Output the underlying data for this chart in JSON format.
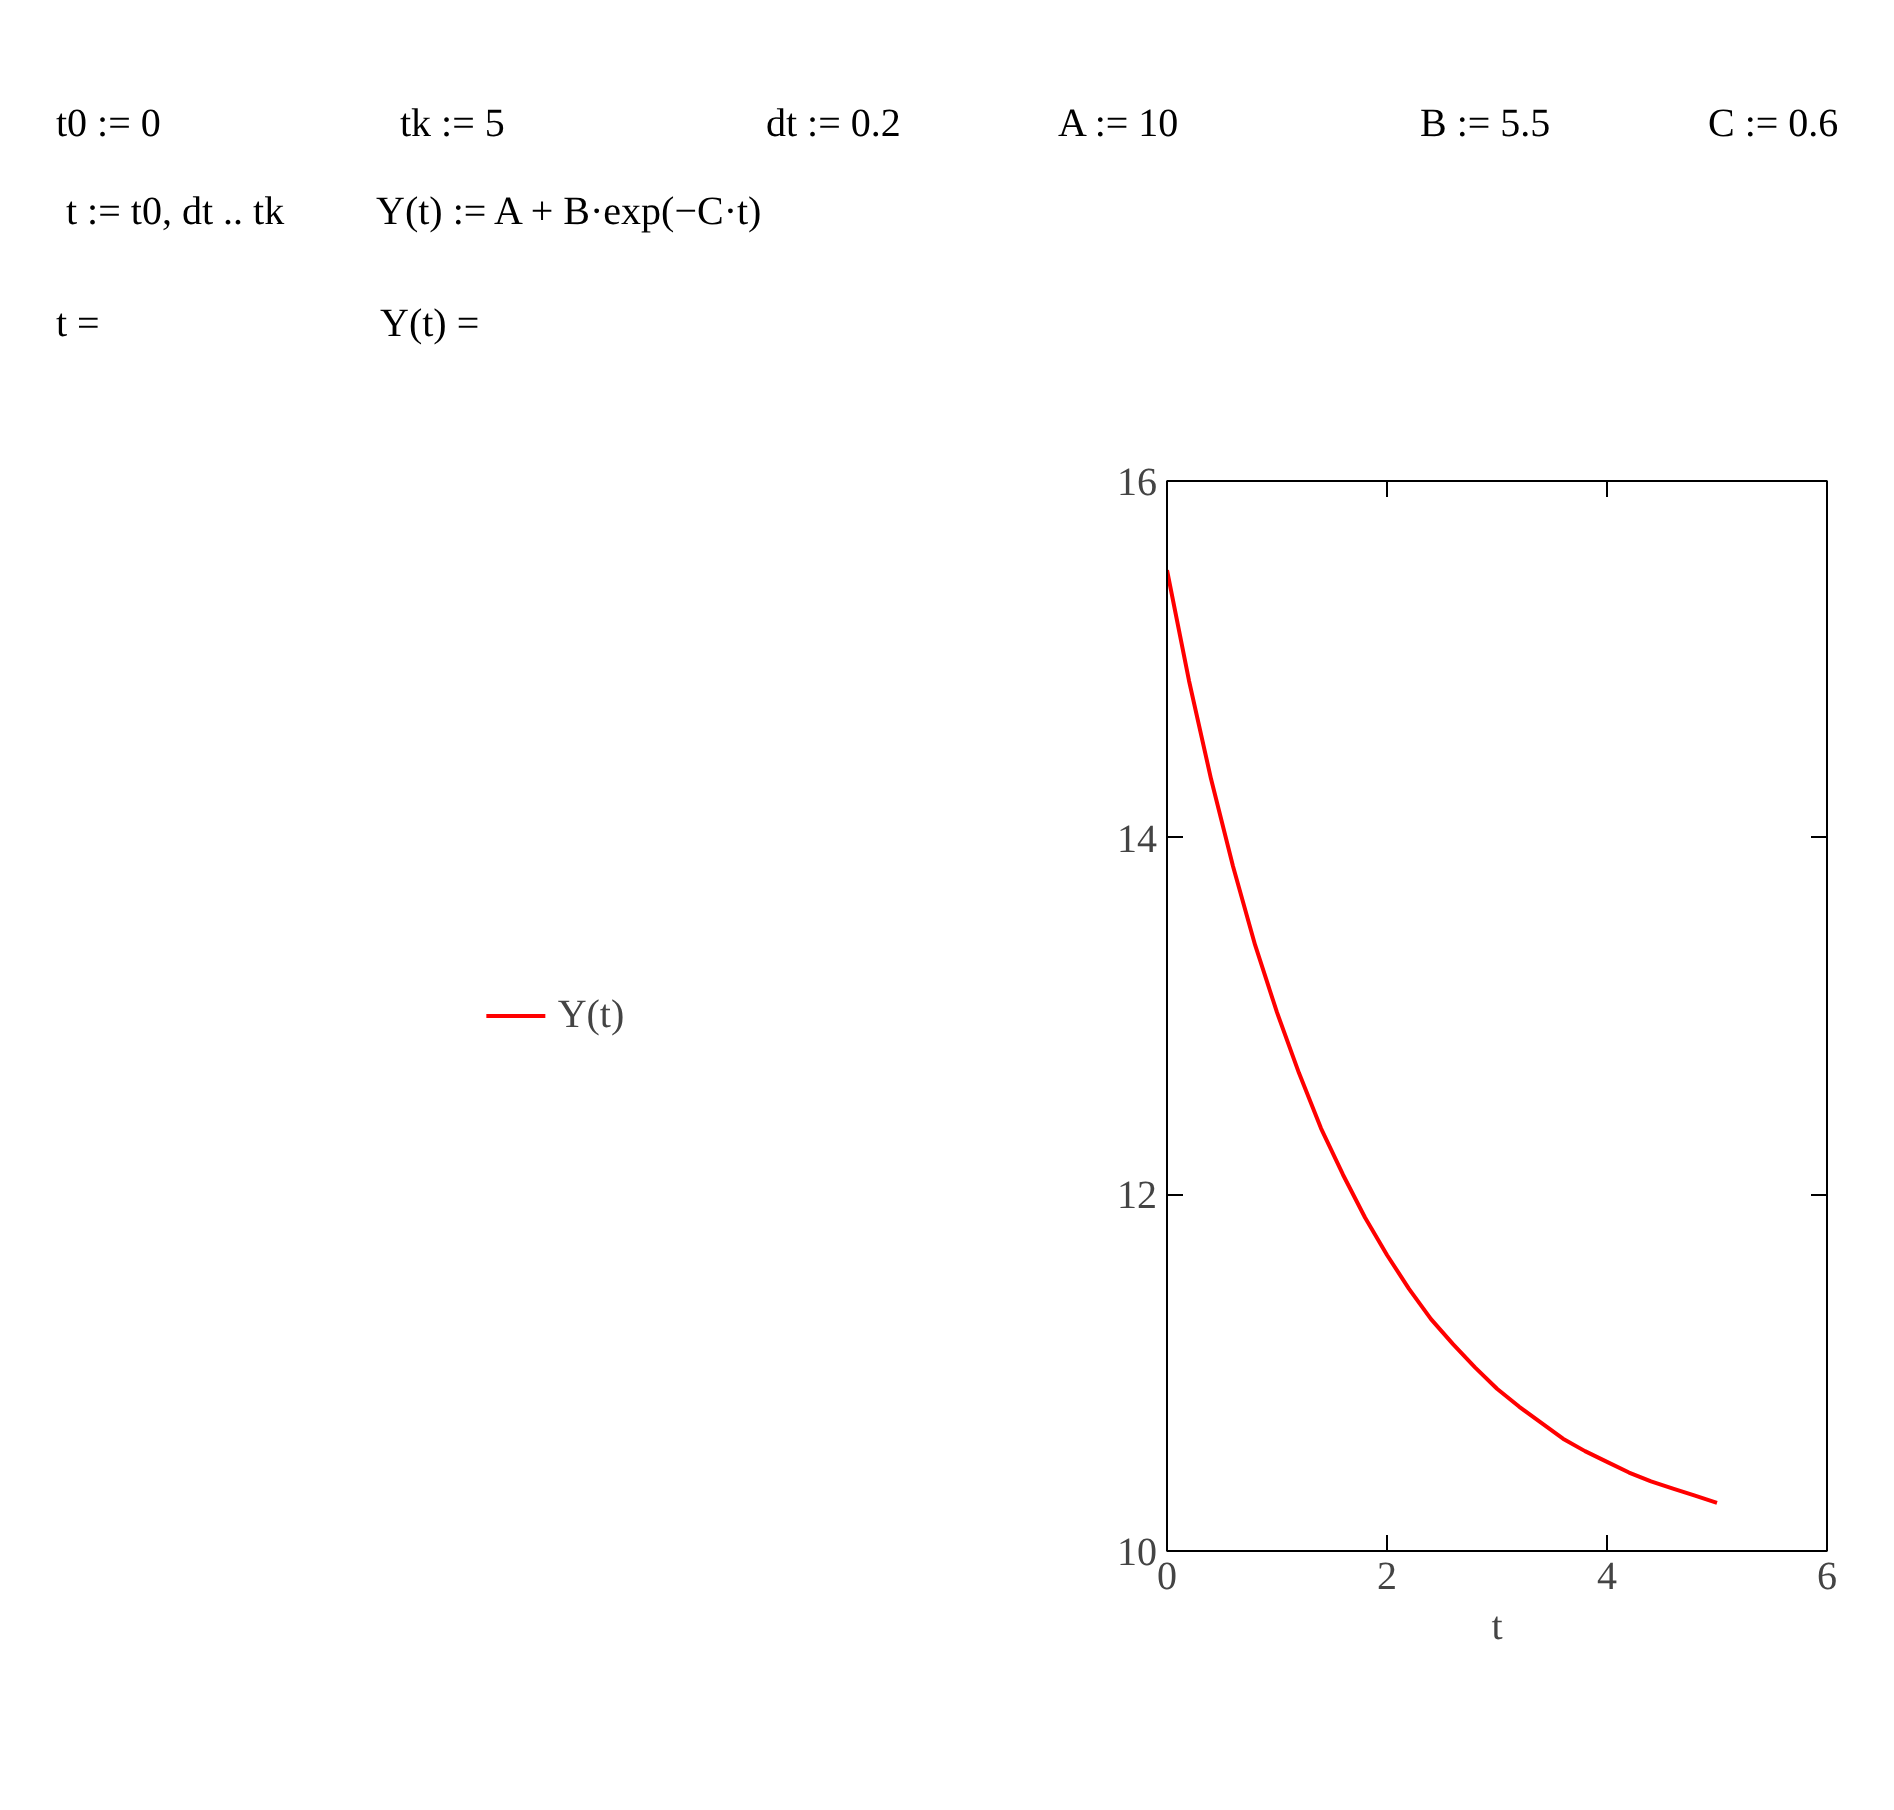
{
  "chart_data": {
    "type": "line",
    "xlabel": "t",
    "xlim": [
      0,
      6
    ],
    "ylim": [
      10,
      16
    ],
    "xticks": [
      0,
      2,
      4,
      6
    ],
    "yticks": [
      10,
      12,
      14,
      16
    ],
    "grid": false,
    "legend": "left",
    "marker": "none",
    "line_style": "solid",
    "annotations": [
      "t0 := 0",
      "tk := 5",
      "dt := 0.2",
      "A := 10",
      "B := 5.5",
      "C := 0.6",
      "t := t0, dt .. tk",
      "Y(t) := A + B·exp(−C·t)",
      "t =",
      "Y(t) ="
    ],
    "x": [
      0,
      0.2,
      0.4,
      0.6,
      0.8,
      1.0,
      1.2,
      1.4,
      1.6,
      1.8,
      2.0,
      2.2,
      2.4,
      2.6,
      2.8,
      3.0,
      3.2,
      3.4,
      3.6,
      3.8,
      4.0,
      4.2,
      4.4,
      4.6,
      4.8,
      5.0
    ],
    "series": [
      {
        "name": "Y(t)",
        "color": "#ff0000",
        "values": [
          15.5,
          14.88,
          14.33,
          13.84,
          13.4,
          13.02,
          12.68,
          12.37,
          12.11,
          11.87,
          11.66,
          11.47,
          11.3,
          11.16,
          11.03,
          10.91,
          10.81,
          10.72,
          10.63,
          10.56,
          10.5,
          10.44,
          10.39,
          10.35,
          10.31,
          10.27
        ]
      }
    ]
  }
}
